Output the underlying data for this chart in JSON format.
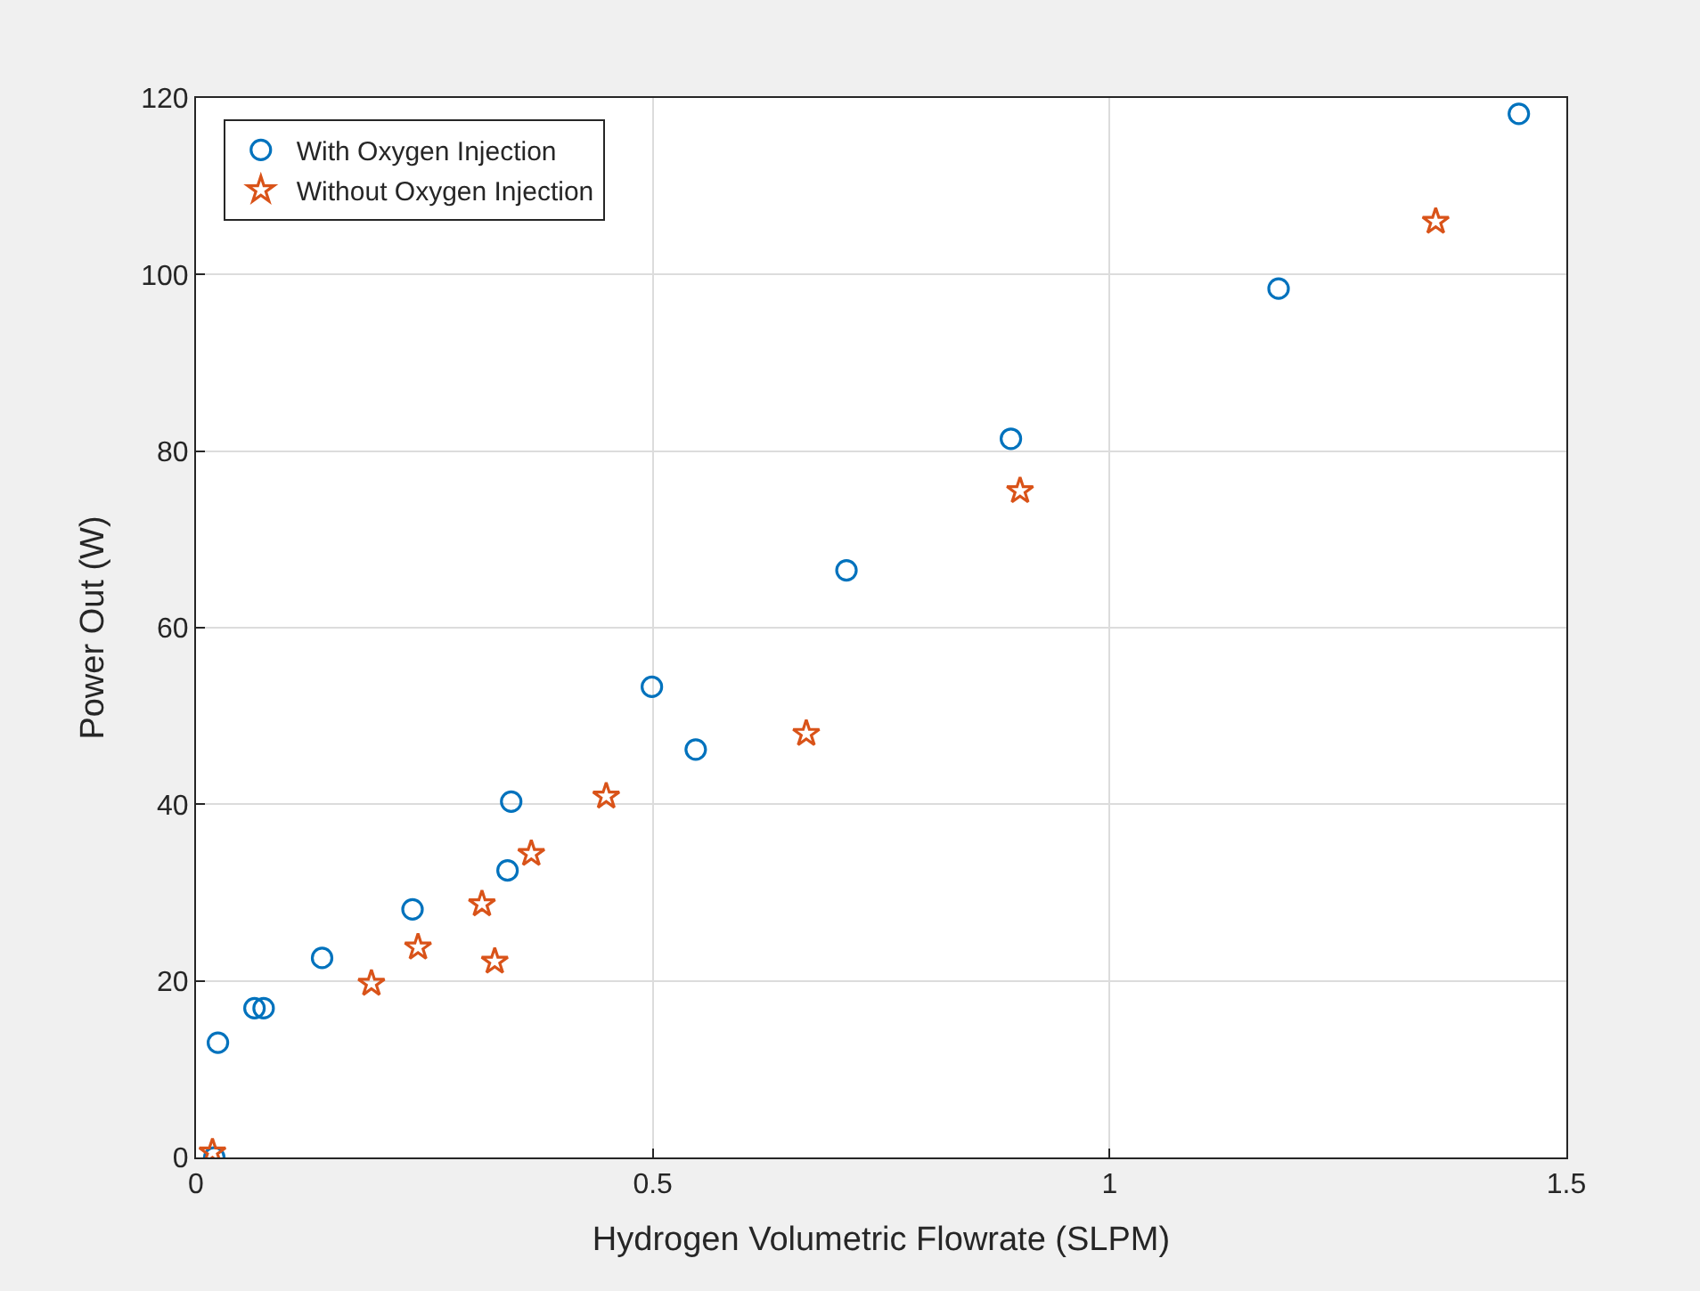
{
  "chart_data": {
    "type": "scatter",
    "xlabel": "Hydrogen Volumetric Flowrate (SLPM)",
    "ylabel": "Power Out (W)",
    "xlim": [
      0,
      1.5
    ],
    "xticks": [
      0,
      0.5,
      1,
      1.5
    ],
    "ylim": [
      0,
      120
    ],
    "yticks": [
      0,
      20,
      40,
      60,
      80,
      100,
      120
    ],
    "grid": true,
    "legend": "top left",
    "series": [
      {
        "name": "With Oxygen Injection",
        "color": "#0072bd",
        "marker": "circle",
        "x": [
          0.02,
          0.024,
          0.064,
          0.074,
          0.138,
          0.237,
          0.341,
          0.345,
          0.499,
          0.547,
          0.712,
          0.892,
          1.185,
          1.448
        ],
        "values": [
          0,
          13,
          16.9,
          16.9,
          22.6,
          28.1,
          32.5,
          40.3,
          53.3,
          46.2,
          66.5,
          81.4,
          98.4,
          118.2
        ]
      },
      {
        "name": "Without Oxygen Injection",
        "color": "#d95319",
        "marker": "star",
        "x": [
          0.018,
          0.192,
          0.243,
          0.313,
          0.327,
          0.367,
          0.449,
          0.668,
          0.902,
          1.357
        ],
        "values": [
          0.6,
          19.7,
          23.8,
          28.7,
          22.2,
          34.4,
          40.9,
          48,
          75.5,
          106
        ]
      }
    ]
  }
}
